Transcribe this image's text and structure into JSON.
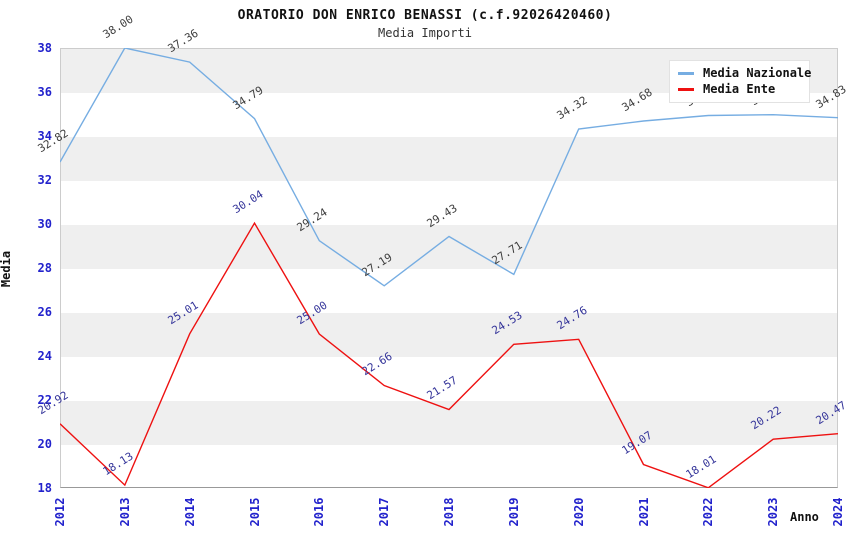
{
  "header": {
    "title": "ORATORIO DON ENRICO BENASSI (c.f.92026420460)",
    "subtitle": "Media Importi"
  },
  "chart_data": {
    "type": "line",
    "title": "ORATORIO DON ENRICO BENASSI (c.f.92026420460)",
    "subtitle": "Media Importi",
    "xlabel": "Anno",
    "ylabel": "Media",
    "x": [
      2012,
      2013,
      2014,
      2015,
      2016,
      2017,
      2018,
      2019,
      2020,
      2021,
      2022,
      2023,
      2024
    ],
    "series": [
      {
        "name": "Media Nazionale",
        "color": "#76ade2",
        "label_color": "#3c3c3c",
        "values": [
          32.82,
          38.0,
          37.36,
          34.79,
          29.24,
          27.19,
          29.43,
          27.71,
          34.32,
          34.68,
          34.93,
          34.97,
          34.83
        ]
      },
      {
        "name": "Media Ente",
        "color": "#ee1111",
        "label_color": "#333399",
        "values": [
          20.92,
          18.13,
          25.01,
          30.04,
          25.0,
          22.66,
          21.57,
          24.53,
          24.76,
          19.07,
          18.01,
          20.22,
          20.47
        ]
      }
    ],
    "ylim": [
      18,
      38
    ],
    "ytick_step": 2,
    "grid": "alternating-horizontal-bands",
    "band_colors": [
      "#efefef",
      "#ffffff"
    ],
    "tick_label_color": "#2222cc",
    "legend_position": "top-right"
  }
}
